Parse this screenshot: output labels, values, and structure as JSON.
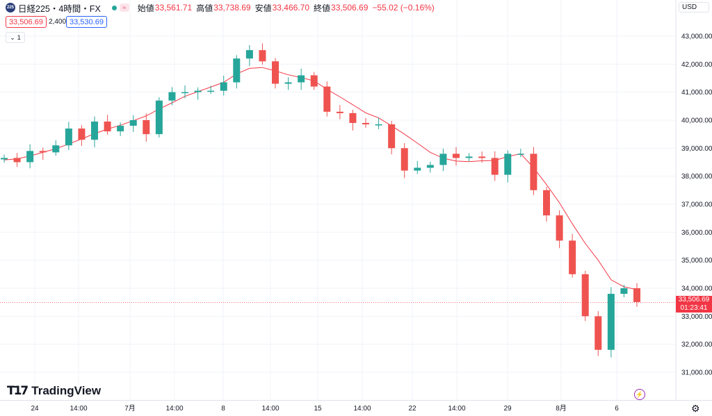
{
  "header": {
    "symbol_logo": "225",
    "symbol_name": "日経225・4時間・FX",
    "session_icon": "≈",
    "ohlc": [
      {
        "label": "始値",
        "value": "33,561.71"
      },
      {
        "label": "高値",
        "value": "33,738.69"
      },
      {
        "label": "安値",
        "value": "33,466.70"
      },
      {
        "label": "終値",
        "value": "33,506.69"
      },
      {
        "label": "",
        "value": "−55.02 (−0.16%)"
      }
    ]
  },
  "quote": {
    "sell": "33,506.69",
    "spread": "2,400",
    "buy": "33,530.69"
  },
  "collapse": {
    "icon": "chevron-down-icon",
    "count": "1"
  },
  "currency": "USD",
  "logo_text": "TradingView",
  "price_label": {
    "price": "33,506.69",
    "countdown": "01:23:41"
  },
  "colors": {
    "up": "#26a69a",
    "down": "#ef5350",
    "ma": "#f23645",
    "grid": "#f0f3fa"
  },
  "chart_data": {
    "type": "candlestick",
    "title": "日経225・4時間・FX",
    "y_ticks": [
      31000,
      32000,
      33000,
      34000,
      35000,
      36000,
      37000,
      38000,
      39000,
      40000,
      41000,
      42000,
      43000
    ],
    "y_tick_labels": [
      "31,000.00",
      "32,000.00",
      "33,000.00",
      "34,000.00",
      "35,000.00",
      "36,000.00",
      "37,000.00",
      "38,000.00",
      "39,000.00",
      "40,000.00",
      "41,000.00",
      "42,000.00",
      "43,000.00"
    ],
    "x_tick_labels": [
      "24",
      "14:00",
      "7月",
      "14:00",
      "8",
      "14:00",
      "15",
      "14:00",
      "22",
      "14:00",
      "29",
      "14:00",
      "8月",
      "14:00",
      "6"
    ],
    "last_price": 33506.69,
    "series": [
      {
        "name": "candles",
        "points": [
          [
            0,
            38650
          ],
          [
            1,
            38500
          ],
          [
            2,
            38900
          ],
          [
            3,
            38850
          ],
          [
            4,
            39100
          ],
          [
            5,
            39700
          ],
          [
            6,
            39300
          ],
          [
            7,
            39950
          ],
          [
            8,
            39600
          ],
          [
            9,
            39800
          ],
          [
            10,
            40000
          ],
          [
            11,
            39500
          ],
          [
            12,
            40700
          ],
          [
            13,
            41000
          ],
          [
            14,
            41000
          ],
          [
            15,
            41050
          ],
          [
            16,
            41050
          ],
          [
            17,
            41350
          ],
          [
            18,
            42200
          ],
          [
            19,
            42500
          ],
          [
            20,
            42100
          ],
          [
            21,
            41300
          ],
          [
            22,
            41350
          ],
          [
            23,
            41600
          ],
          [
            24,
            41200
          ],
          [
            25,
            40300
          ],
          [
            26,
            40250
          ],
          [
            27,
            39900
          ],
          [
            28,
            39850
          ],
          [
            29,
            39850
          ],
          [
            30,
            39000
          ],
          [
            31,
            38200
          ],
          [
            32,
            38300
          ],
          [
            33,
            38400
          ],
          [
            34,
            38800
          ],
          [
            35,
            38650
          ],
          [
            36,
            38700
          ],
          [
            37,
            38650
          ],
          [
            38,
            38050
          ],
          [
            39,
            38800
          ],
          [
            40,
            38800
          ],
          [
            41,
            37500
          ],
          [
            42,
            36600
          ],
          [
            43,
            35700
          ],
          [
            44,
            34500
          ],
          [
            45,
            33000
          ],
          [
            46,
            31800
          ],
          [
            47,
            33800
          ],
          [
            48,
            34000
          ],
          [
            49,
            33506.69
          ]
        ]
      },
      {
        "name": "MA",
        "points": [
          38580,
          38620,
          38720,
          38850,
          38980,
          39150,
          39330,
          39520,
          39680,
          39820,
          39980,
          40150,
          40400,
          40620,
          40850,
          41020,
          41180,
          41350,
          41650,
          41850,
          41880,
          41760,
          41620,
          41520,
          41400,
          41100,
          40830,
          40550,
          40260,
          40080,
          39800,
          39500,
          39180,
          38850,
          38640,
          38540,
          38520,
          38550,
          38560,
          38700,
          38800,
          38300,
          37700,
          37050,
          36300,
          35600,
          35000,
          34300,
          34050,
          33950
        ]
      }
    ],
    "ylim": [
      30700,
      43600
    ]
  }
}
